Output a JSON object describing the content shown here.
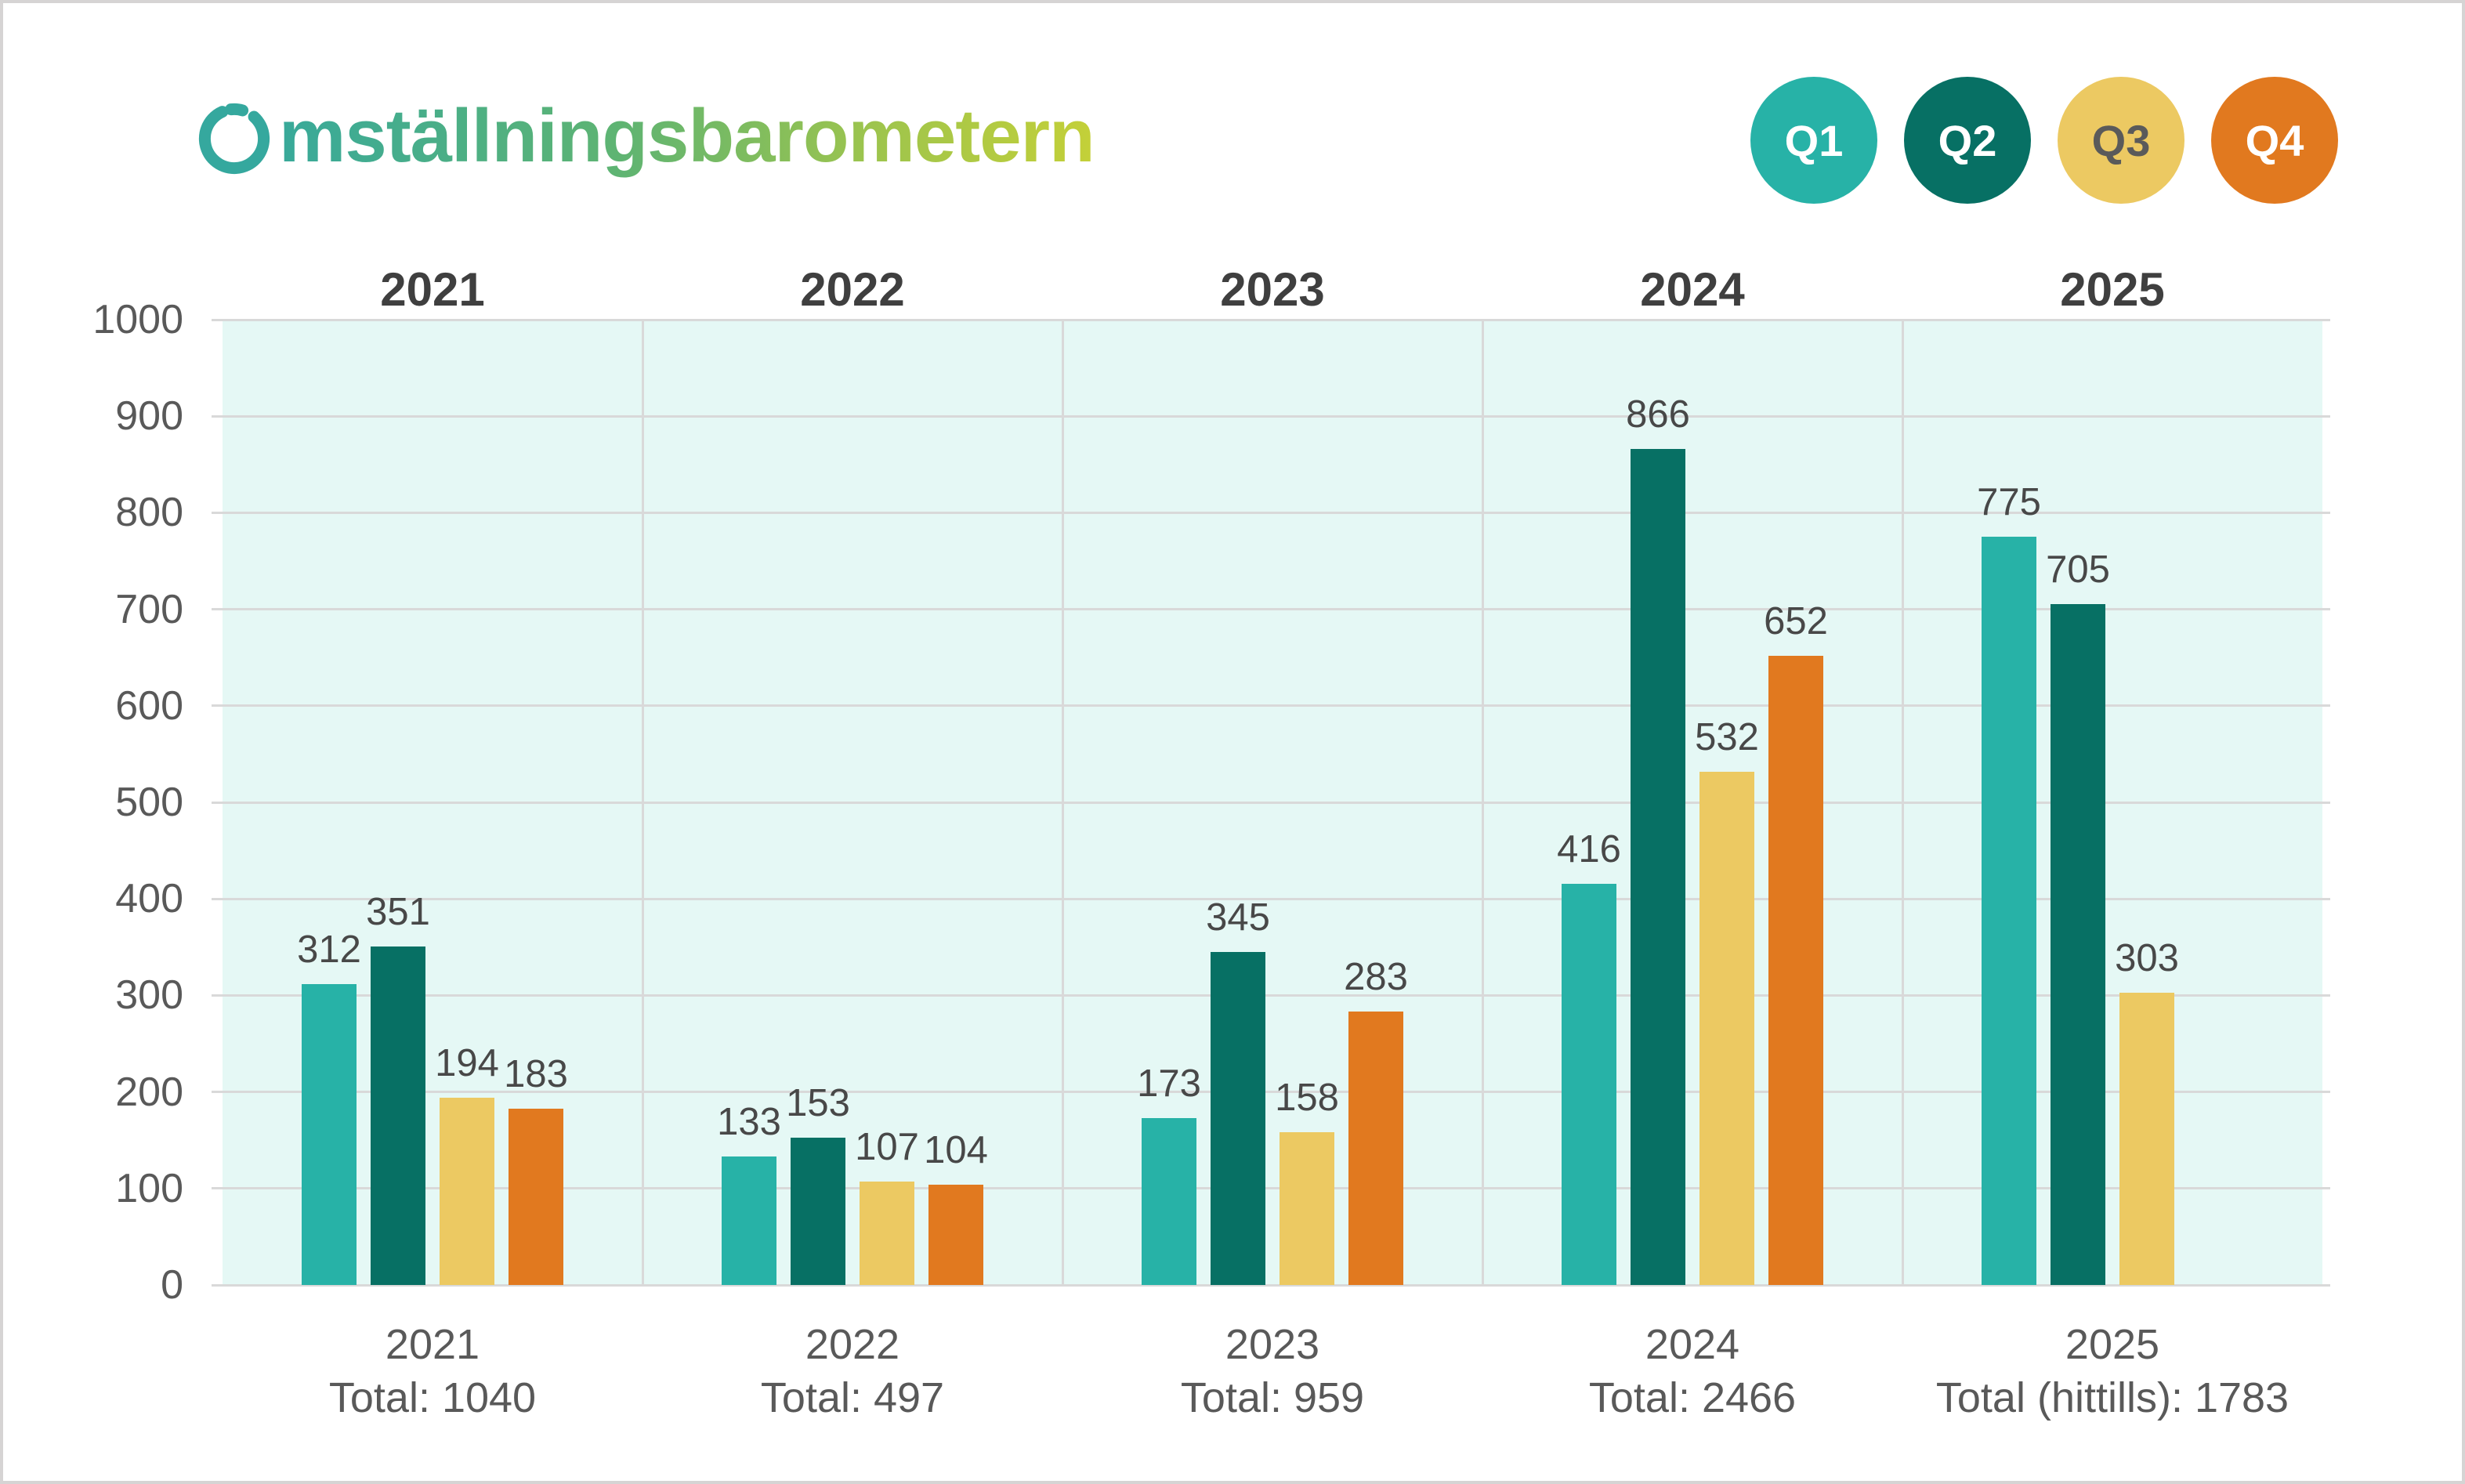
{
  "header": {
    "title": "Omställningsbarometern"
  },
  "legend": [
    {
      "label": "Q1",
      "color": "#27b2a7",
      "text_color": "#ffffff"
    },
    {
      "label": "Q2",
      "color": "#077064",
      "text_color": "#ffffff"
    },
    {
      "label": "Q3",
      "color": "#ecc962",
      "text_color": "#5a5a5a"
    },
    {
      "label": "Q4",
      "color": "#e1791f",
      "text_color": "#ffffff"
    }
  ],
  "y_axis": {
    "min": 0,
    "max": 1000,
    "step": 100,
    "tick_labels": [
      "0",
      "100",
      "200",
      "300",
      "400",
      "500",
      "600",
      "700",
      "800",
      "900",
      "1000"
    ]
  },
  "x_axis": {
    "labels": [
      {
        "year": "2021",
        "total": "Total: 1040"
      },
      {
        "year": "2022",
        "total": "Total: 497"
      },
      {
        "year": "2023",
        "total": "Total: 959"
      },
      {
        "year": "2024",
        "total": "Total: 2466"
      },
      {
        "year": "2025",
        "total": "Total (hittills): 1783"
      }
    ]
  },
  "chart_data": {
    "type": "bar",
    "title": "Omställningsbarometern",
    "categories": [
      "2021",
      "2022",
      "2023",
      "2024",
      "2025"
    ],
    "series": [
      {
        "name": "Q1",
        "color": "#27b2a7",
        "values": [
          312,
          133,
          173,
          416,
          775
        ]
      },
      {
        "name": "Q2",
        "color": "#077064",
        "values": [
          351,
          153,
          345,
          866,
          705
        ]
      },
      {
        "name": "Q3",
        "color": "#ecc962",
        "values": [
          194,
          107,
          158,
          532,
          303
        ]
      },
      {
        "name": "Q4",
        "color": "#e1791f",
        "values": [
          183,
          104,
          283,
          652,
          null
        ]
      }
    ],
    "totals": [
      1040,
      497,
      959,
      2466,
      1783
    ],
    "ylim": [
      0,
      1000
    ],
    "grid": true,
    "plot_background": "#e5f8f5",
    "gridline_color": "#d9d9d9",
    "legend_position": "top-right",
    "value_labels": true
  },
  "styles": {
    "title_gradient_start": "#38a99a",
    "title_gradient_end": "#c4d038",
    "logo_color": "#35a89e",
    "year_header_color": "#3f3f3f",
    "axis_text_color": "#595959",
    "value_label_color": "#484848",
    "border_color": "#d6d4d4"
  }
}
